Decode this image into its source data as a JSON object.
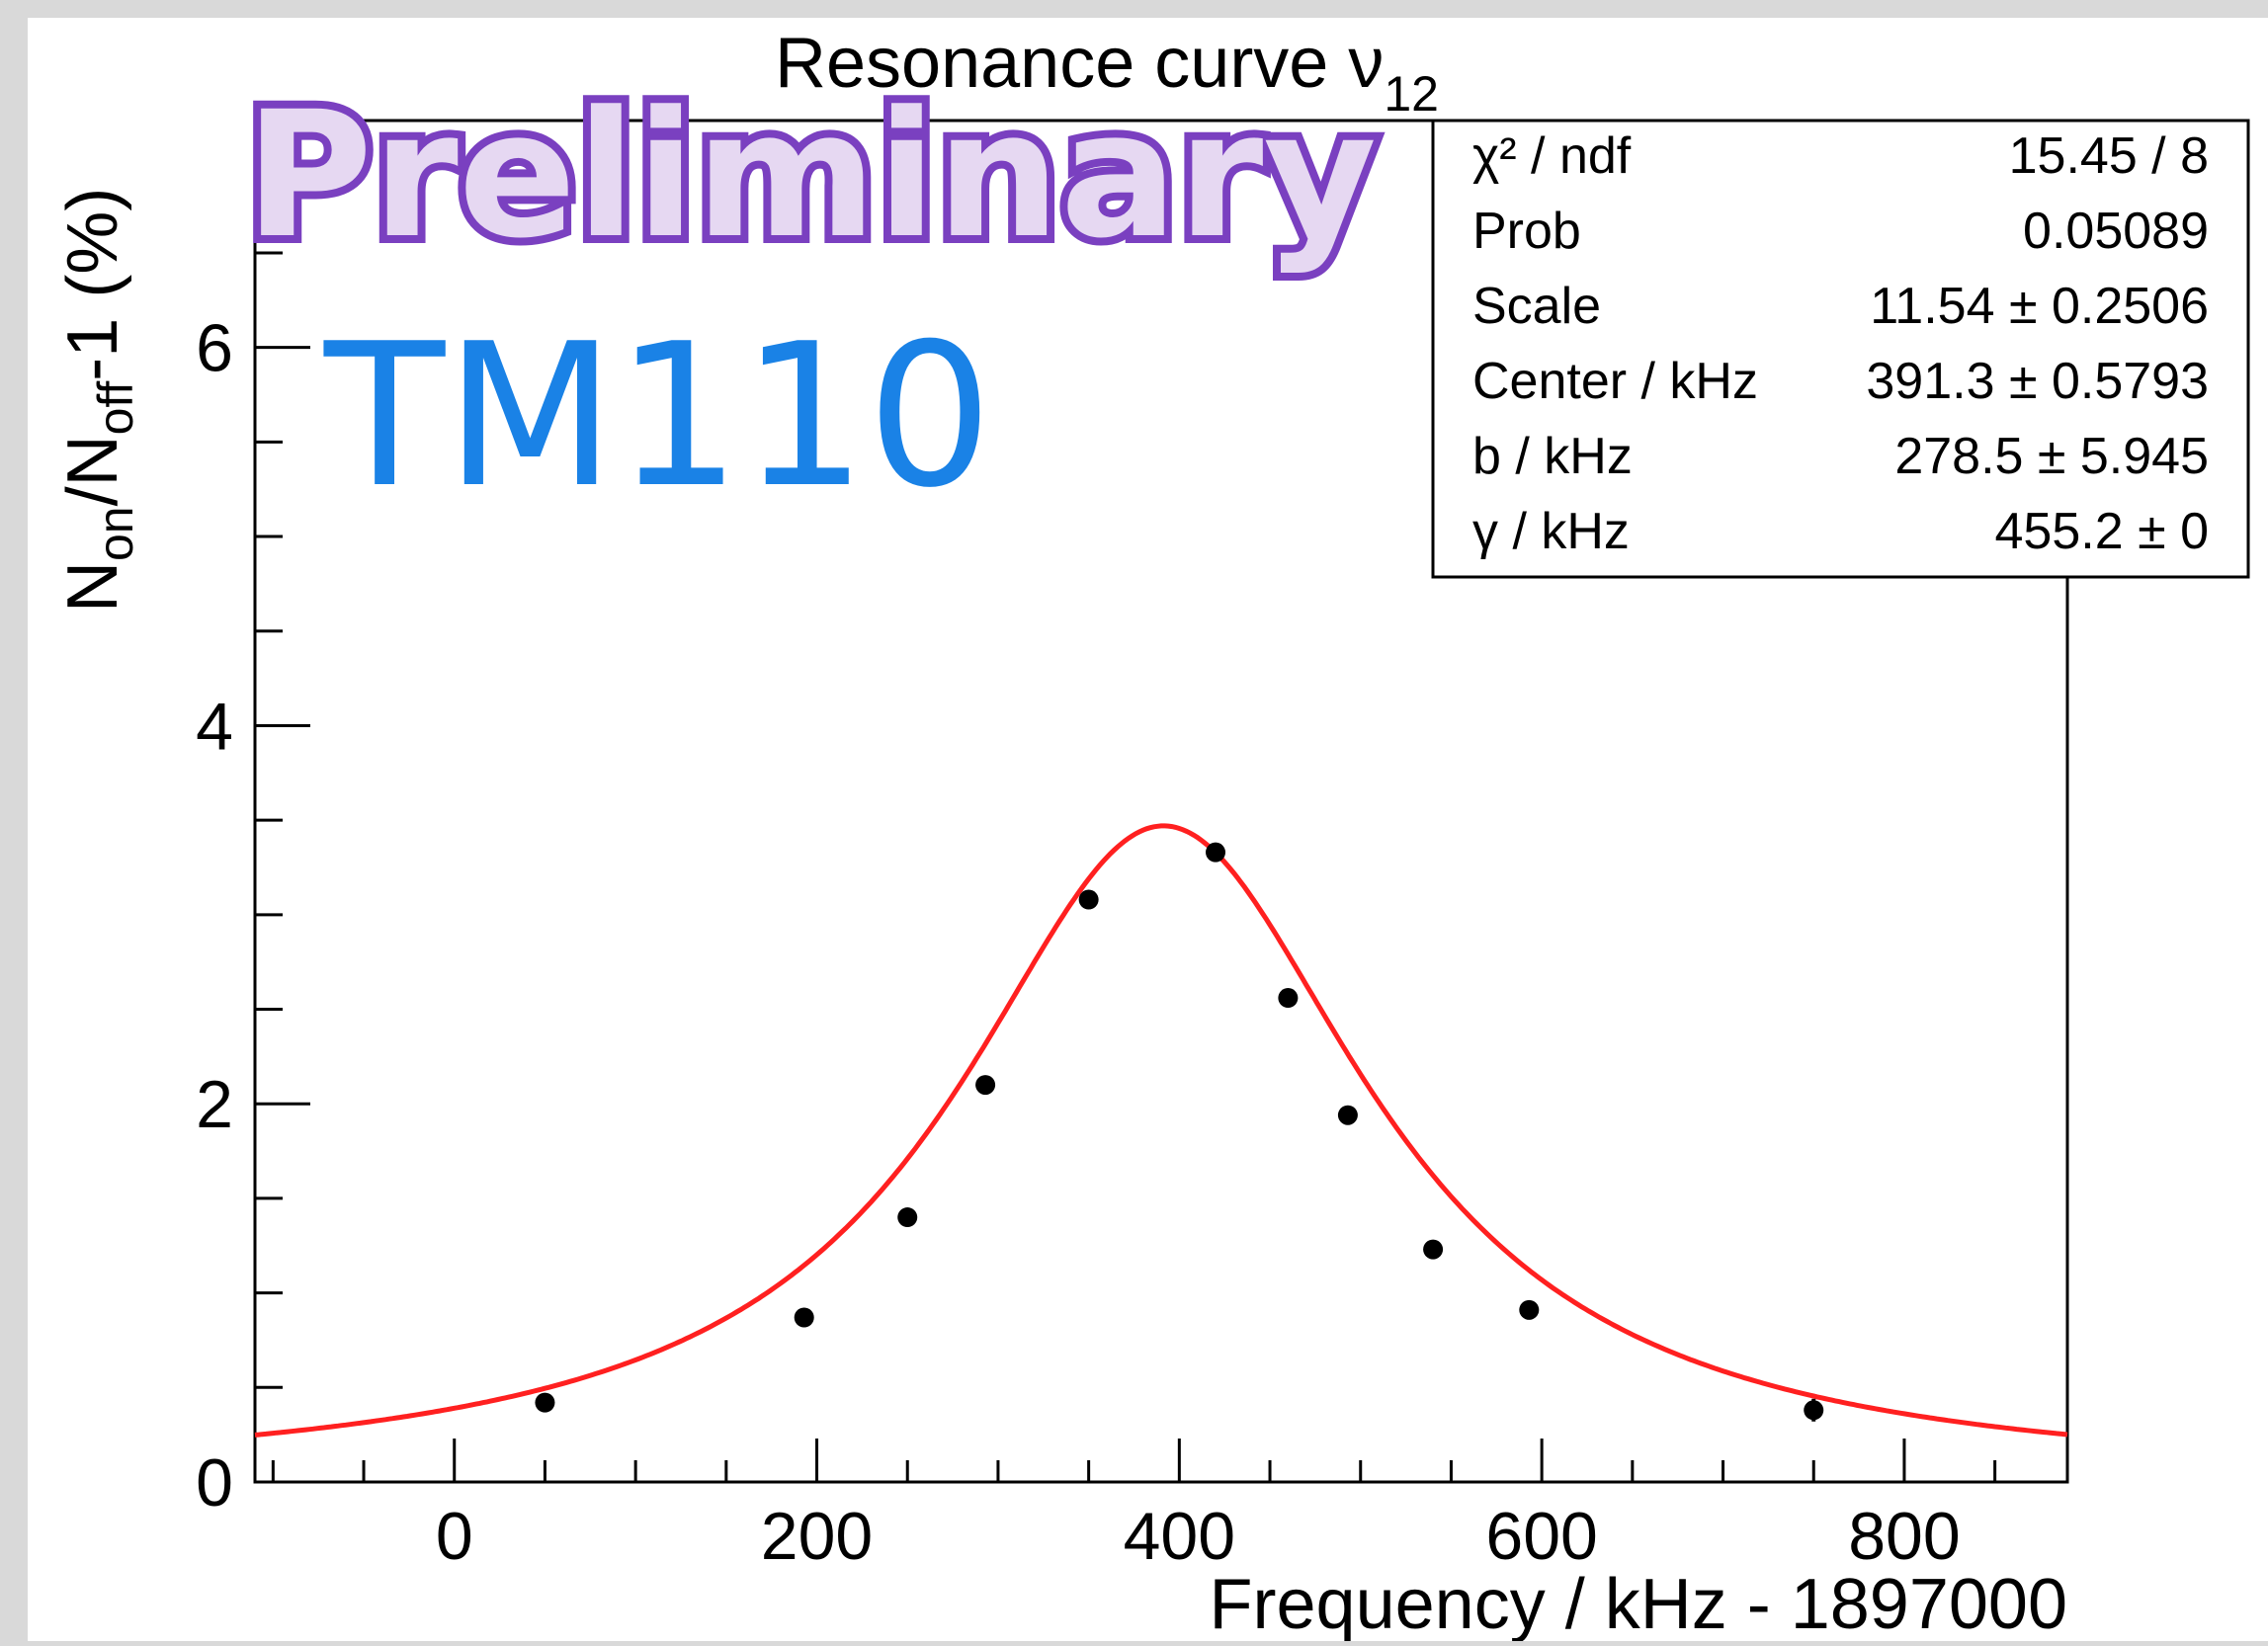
{
  "chart_data": {
    "type": "scatter",
    "title": "Resonance curve ν",
    "title_sub": "12",
    "xlabel": "Frequency / kHz - 1897000",
    "ylabel": {
      "main": "N",
      "sub1": "on",
      "mid": "/N",
      "sub2": "off",
      "tail": "-1 (%)"
    },
    "xlim": [
      -110,
      890
    ],
    "ylim": [
      0,
      7.2
    ],
    "x_ticks": [
      0,
      200,
      400,
      600,
      800
    ],
    "y_ticks": [
      0,
      2,
      4,
      6
    ],
    "series": [
      {
        "x": [
          50,
          193,
          250,
          293,
          350,
          420,
          460,
          493,
          540,
          593,
          750
        ],
        "y": [
          0.42,
          0.87,
          1.4,
          2.1,
          3.08,
          3.33,
          2.56,
          1.94,
          1.23,
          0.91,
          0.38
        ],
        "err": [
          0.04,
          0.03,
          0.03,
          0.03,
          0.03,
          0.03,
          0.03,
          0.03,
          0.03,
          0.03,
          0.06
        ],
        "marker_color": "#000000"
      }
    ],
    "fit": {
      "color": "#ff2020",
      "scale": 11.54,
      "center": 391.3,
      "b": 278.5,
      "gamma": 455.2
    },
    "stats_box": [
      {
        "name": "χ² / ndf",
        "value": "15.45 / 8"
      },
      {
        "name": "Prob",
        "value": "0.05089"
      },
      {
        "name": "Scale",
        "value": "11.54 ± 0.2506"
      },
      {
        "name": "Center / kHz",
        "value": "391.3 ± 0.5793"
      },
      {
        "name": "b / kHz",
        "value": "278.5 ± 5.945"
      },
      {
        "name": "γ  / kHz",
        "value": "455.2 ±     0"
      }
    ],
    "grid": false
  },
  "overlays": {
    "preliminary": "Preliminary",
    "mode": "TM110"
  },
  "colors": {
    "preliminary_fill": "#e6d8f2",
    "preliminary_stroke": "#7a40c0",
    "mode_text": "#1a82e6",
    "fit_line": "#ff2020"
  }
}
